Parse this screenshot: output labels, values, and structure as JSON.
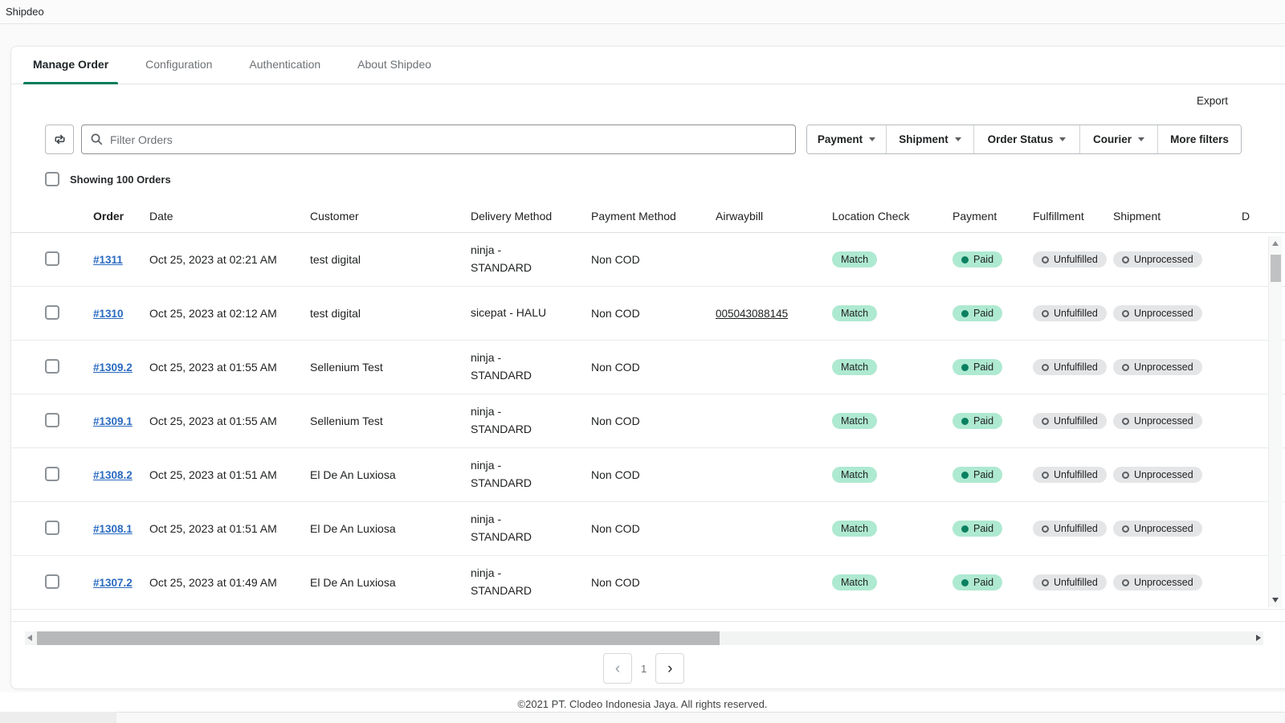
{
  "topbar": {
    "title": "Shipdeo"
  },
  "tabs": [
    {
      "label": "Manage Order",
      "active": true
    },
    {
      "label": "Configuration",
      "active": false
    },
    {
      "label": "Authentication",
      "active": false
    },
    {
      "label": "About Shipdeo",
      "active": false
    }
  ],
  "toolbar": {
    "export_label": "Export",
    "search_placeholder": "Filter Orders",
    "filters": [
      "Payment",
      "Shipment",
      "Order Status",
      "Courier"
    ],
    "more_filters_label": "More filters"
  },
  "summary": {
    "label": "Showing 100 Orders"
  },
  "table": {
    "headers": [
      "Order",
      "Date",
      "Customer",
      "Delivery Method",
      "Payment Method",
      "Airwaybill",
      "Location Check",
      "Payment",
      "Fulfillment",
      "Shipment",
      "D"
    ],
    "rows": [
      {
        "order": "#1311",
        "date": "Oct 25, 2023 at 02:21 AM",
        "customer": "test digital",
        "delivery": "ninja - STANDARD",
        "payment_method": "Non COD",
        "airwaybill": "",
        "location_check": "Match",
        "payment": "Paid",
        "fulfillment": "Unfulfilled",
        "shipment": "Unprocessed"
      },
      {
        "order": "#1310",
        "date": "Oct 25, 2023 at 02:12 AM",
        "customer": "test digital",
        "delivery": "sicepat - HALU",
        "payment_method": "Non COD",
        "airwaybill": "005043088145",
        "location_check": "Match",
        "payment": "Paid",
        "fulfillment": "Unfulfilled",
        "shipment": "Unprocessed"
      },
      {
        "order": "#1309.2",
        "date": "Oct 25, 2023 at 01:55 AM",
        "customer": "Sellenium Test",
        "delivery": "ninja - STANDARD",
        "payment_method": "Non COD",
        "airwaybill": "",
        "location_check": "Match",
        "payment": "Paid",
        "fulfillment": "Unfulfilled",
        "shipment": "Unprocessed"
      },
      {
        "order": "#1309.1",
        "date": "Oct 25, 2023 at 01:55 AM",
        "customer": "Sellenium Test",
        "delivery": "ninja - STANDARD",
        "payment_method": "Non COD",
        "airwaybill": "",
        "location_check": "Match",
        "payment": "Paid",
        "fulfillment": "Unfulfilled",
        "shipment": "Unprocessed"
      },
      {
        "order": "#1308.2",
        "date": "Oct 25, 2023 at 01:51 AM",
        "customer": "El De An Luxiosa",
        "delivery": "ninja - STANDARD",
        "payment_method": "Non COD",
        "airwaybill": "",
        "location_check": "Match",
        "payment": "Paid",
        "fulfillment": "Unfulfilled",
        "shipment": "Unprocessed"
      },
      {
        "order": "#1308.1",
        "date": "Oct 25, 2023 at 01:51 AM",
        "customer": "El De An Luxiosa",
        "delivery": "ninja - STANDARD",
        "payment_method": "Non COD",
        "airwaybill": "",
        "location_check": "Match",
        "payment": "Paid",
        "fulfillment": "Unfulfilled",
        "shipment": "Unprocessed"
      },
      {
        "order": "#1307.2",
        "date": "Oct 25, 2023 at 01:49 AM",
        "customer": "El De An Luxiosa",
        "delivery": "ninja - STANDARD",
        "payment_method": "Non COD",
        "airwaybill": "",
        "location_check": "Match",
        "payment": "Paid",
        "fulfillment": "Unfulfilled",
        "shipment": "Unprocessed"
      }
    ]
  },
  "pagination": {
    "prev": "‹",
    "current_page": "1",
    "next": "›"
  },
  "footer": {
    "copyright": "©2021 PT. Clodeo Indonesia Jaya. All rights reserved."
  },
  "colors": {
    "accent_green": "#007d5c",
    "badge_green_bg": "#aee9d1",
    "badge_gray_bg": "#e4e5e7",
    "paid_dot": "#0b8060",
    "link_blue": "#2a6bc0"
  }
}
